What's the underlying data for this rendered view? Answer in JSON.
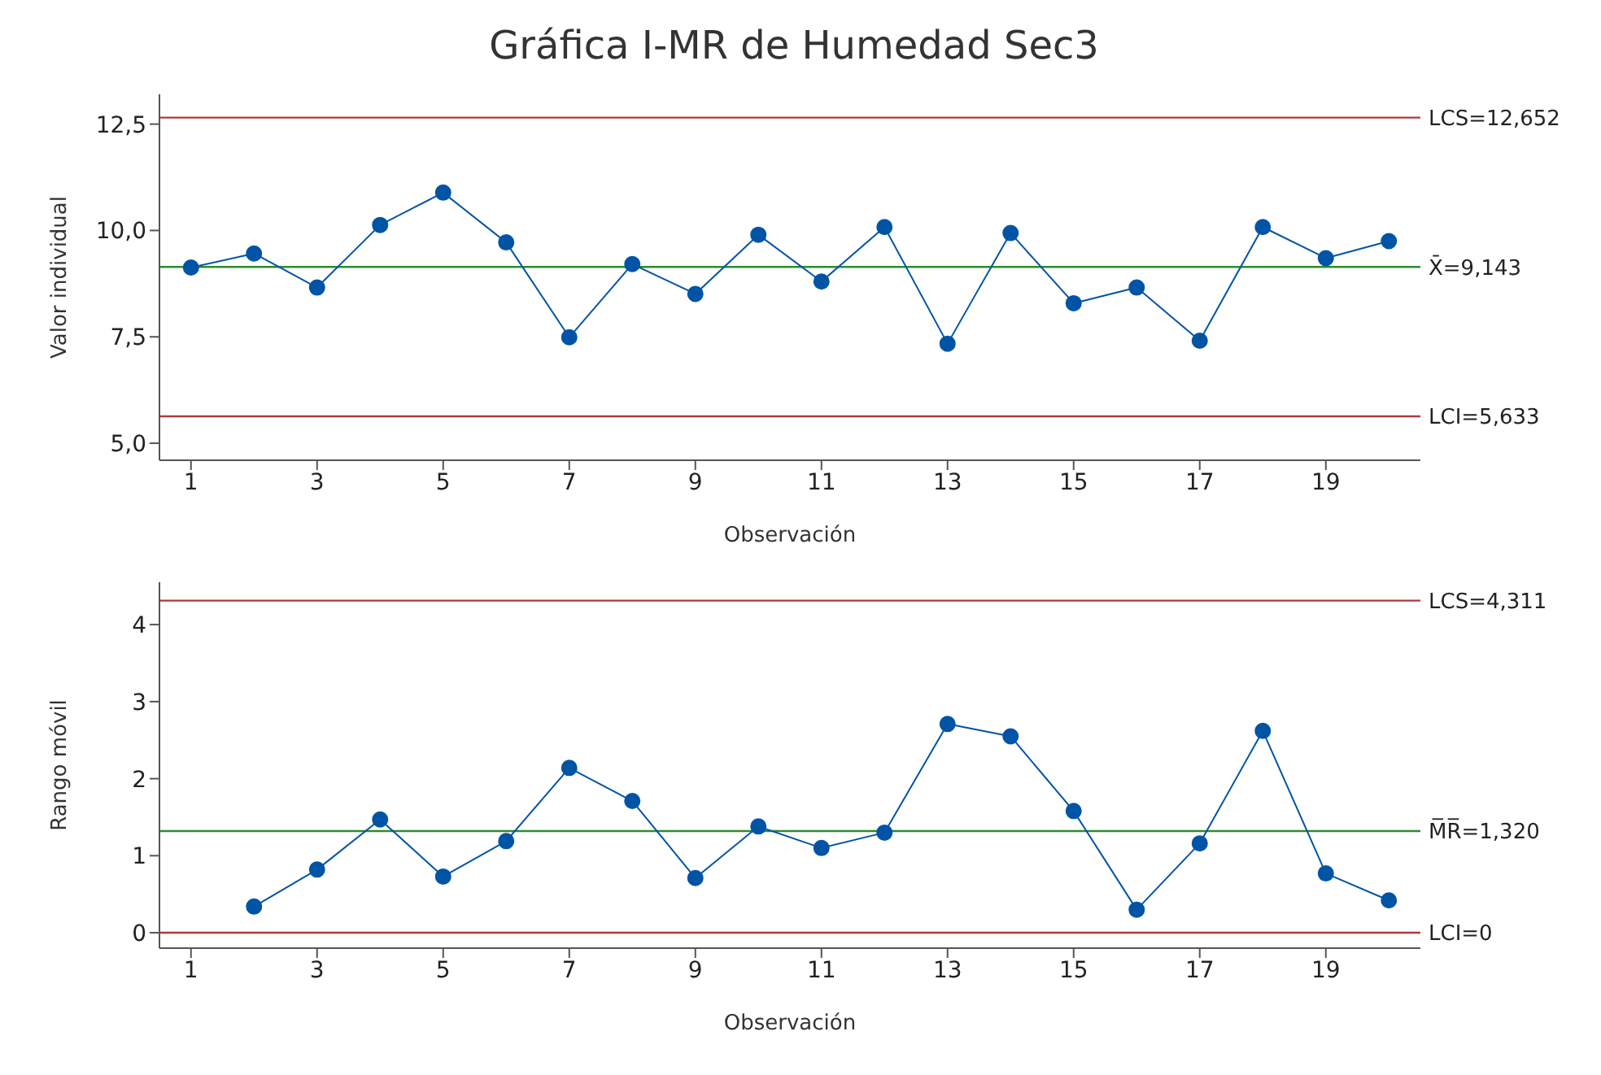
{
  "chart_data": [
    {
      "type": "line",
      "title": "Gráfica I-MR de Humedad Sec3",
      "xlabel": "Observación",
      "ylabel": "Valor individual",
      "x": [
        1,
        2,
        3,
        4,
        5,
        6,
        7,
        8,
        9,
        10,
        11,
        12,
        13,
        14,
        15,
        16,
        17,
        18,
        19,
        20
      ],
      "series": [
        {
          "color": "#0054a6",
          "values": [
            9.13,
            9.46,
            8.66,
            10.13,
            10.89,
            9.72,
            7.49,
            9.21,
            8.51,
            9.9,
            8.8,
            10.08,
            7.34,
            9.94,
            8.29,
            8.66,
            7.41,
            10.08,
            9.35,
            9.75
          ]
        }
      ],
      "xlim": [
        0.5,
        20.5
      ],
      "xticks": [
        1,
        3,
        5,
        7,
        9,
        11,
        13,
        15,
        17,
        19
      ],
      "ylim": [
        4.6,
        13.2
      ],
      "yticks": [
        {
          "value": 5,
          "label": "5,0"
        },
        {
          "value": 7.5,
          "label": "7,5"
        },
        {
          "value": 10,
          "label": "10,0"
        },
        {
          "value": 12.5,
          "label": "12,5"
        }
      ],
      "ref_lines": [
        {
          "axis": "y",
          "value": 12.652,
          "label": "LCS=12,652",
          "color": "#b03a3a"
        },
        {
          "axis": "y",
          "value": 9.143,
          "label": "X̄=9,143",
          "color": "#2e8b2e"
        },
        {
          "axis": "y",
          "value": 5.633,
          "label": "LCI=5,633",
          "color": "#b03a3a"
        }
      ],
      "marker": "circle",
      "grid": false,
      "legend": false
    },
    {
      "type": "line",
      "xlabel": "Observación",
      "ylabel": "Rango móvil",
      "series": [
        {
          "color": "#0054a6",
          "x": [
            2,
            3,
            4,
            5,
            6,
            7,
            8,
            9,
            10,
            11,
            12,
            13,
            14,
            15,
            16,
            17,
            18,
            19,
            20
          ],
          "values": [
            0.34,
            0.82,
            1.47,
            0.73,
            1.19,
            2.14,
            1.71,
            0.71,
            1.38,
            1.1,
            1.3,
            2.71,
            2.55,
            1.58,
            0.3,
            1.16,
            2.62,
            0.77,
            0.42
          ]
        }
      ],
      "xlim": [
        0.5,
        20.5
      ],
      "xticks": [
        1,
        3,
        5,
        7,
        9,
        11,
        13,
        15,
        17,
        19
      ],
      "ylim": [
        -0.2,
        4.55
      ],
      "yticks": [
        0,
        1,
        2,
        3,
        4
      ],
      "ref_lines": [
        {
          "axis": "y",
          "value": 4.311,
          "label": "LCS=4,311",
          "color": "#b03a3a"
        },
        {
          "axis": "y",
          "value": 1.32,
          "label": "M̅R̅=1,320",
          "color": "#2e8b2e"
        },
        {
          "axis": "y",
          "value": 0,
          "label": "LCI=0",
          "color": "#b03a3a"
        }
      ],
      "marker": "circle",
      "grid": false,
      "legend": false
    }
  ]
}
